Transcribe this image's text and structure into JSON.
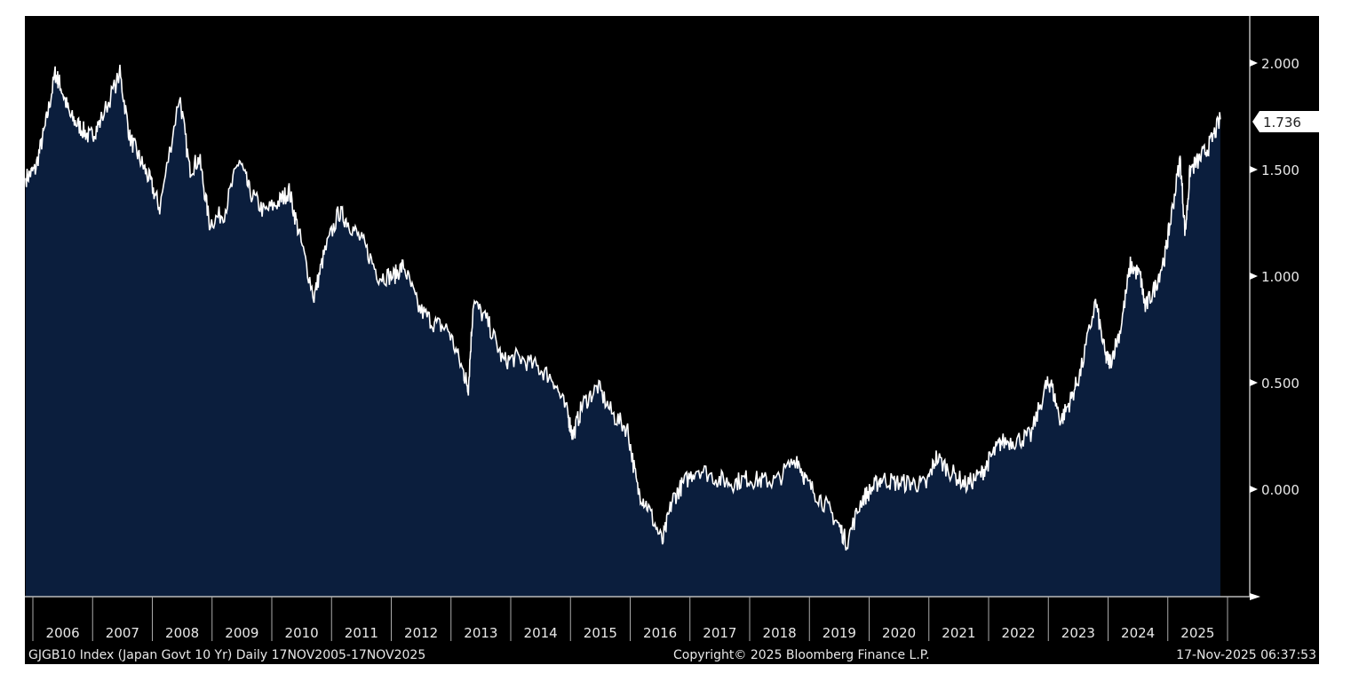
{
  "chart_data": {
    "type": "area",
    "title": "",
    "xlabel": "",
    "ylabel": "",
    "ylim": [
      -0.5,
      2.225
    ],
    "yticks": [
      "2.000",
      "1.500",
      "1.000",
      "0.500",
      "0.000"
    ],
    "ytick_values": [
      2.0,
      1.5,
      1.0,
      0.5,
      0.0
    ],
    "xticks": [
      "2006",
      "2007",
      "2008",
      "2009",
      "2010",
      "2011",
      "2012",
      "2013",
      "2014",
      "2015",
      "2016",
      "2017",
      "2018",
      "2019",
      "2020",
      "2021",
      "2022",
      "2023",
      "2024",
      "2025"
    ],
    "last_value_label": "1.736",
    "grid": false,
    "colors": {
      "background": "#000000",
      "fill": "#0b1e3d",
      "line": "#ffffff",
      "text": "#e8e8e8"
    },
    "series": [
      {
        "x": [
          "2005-11",
          "2006-01",
          "2006-03",
          "2006-05",
          "2006-06",
          "2006-08",
          "2006-10",
          "2006-12",
          "2007-02",
          "2007-06",
          "2007-08",
          "2007-10",
          "2007-12",
          "2008-02",
          "2008-06",
          "2008-08",
          "2008-10",
          "2008-12",
          "2009-03",
          "2009-06",
          "2009-08",
          "2009-11",
          "2010-02",
          "2010-04",
          "2010-06",
          "2010-09",
          "2010-11",
          "2011-02",
          "2011-04",
          "2011-07",
          "2011-10",
          "2012-01",
          "2012-03",
          "2012-06",
          "2012-09",
          "2012-12",
          "2013-03",
          "2013-04",
          "2013-05",
          "2013-08",
          "2013-11",
          "2014-02",
          "2014-06",
          "2014-09",
          "2014-12",
          "2015-01",
          "2015-03",
          "2015-06",
          "2015-09",
          "2015-12",
          "2016-02",
          "2016-04",
          "2016-07",
          "2016-09",
          "2016-11",
          "2017-02",
          "2017-06",
          "2017-09",
          "2017-12",
          "2018-03",
          "2018-06",
          "2018-10",
          "2018-12",
          "2019-03",
          "2019-06",
          "2019-08",
          "2019-11",
          "2020-01",
          "2020-03",
          "2020-06",
          "2020-09",
          "2020-12",
          "2021-02",
          "2021-05",
          "2021-08",
          "2021-11",
          "2022-01",
          "2022-03",
          "2022-06",
          "2022-09",
          "2022-12",
          "2023-01",
          "2023-03",
          "2023-05",
          "2023-07",
          "2023-10",
          "2023-12",
          "2024-01",
          "2024-03",
          "2024-05",
          "2024-07",
          "2024-08",
          "2024-10",
          "2024-12",
          "2025-01",
          "2025-03",
          "2025-04",
          "2025-05",
          "2025-07",
          "2025-09",
          "2025-11"
        ],
        "values": [
          1.46,
          1.5,
          1.7,
          1.95,
          1.9,
          1.75,
          1.7,
          1.65,
          1.72,
          1.95,
          1.65,
          1.55,
          1.45,
          1.32,
          1.85,
          1.5,
          1.55,
          1.25,
          1.3,
          1.55,
          1.4,
          1.3,
          1.35,
          1.4,
          1.2,
          0.9,
          1.1,
          1.3,
          1.25,
          1.15,
          1.0,
          1.0,
          1.05,
          0.85,
          0.78,
          0.75,
          0.55,
          0.48,
          0.88,
          0.78,
          0.6,
          0.62,
          0.57,
          0.52,
          0.35,
          0.25,
          0.4,
          0.48,
          0.35,
          0.28,
          0.0,
          -0.08,
          -0.25,
          -0.05,
          0.02,
          0.1,
          0.05,
          0.03,
          0.05,
          0.04,
          0.04,
          0.15,
          0.03,
          -0.05,
          -0.15,
          -0.25,
          -0.05,
          0.0,
          0.05,
          0.03,
          0.03,
          0.02,
          0.15,
          0.08,
          0.02,
          0.07,
          0.15,
          0.22,
          0.23,
          0.25,
          0.48,
          0.5,
          0.32,
          0.42,
          0.55,
          0.88,
          0.62,
          0.6,
          0.75,
          1.05,
          1.0,
          0.85,
          0.95,
          1.1,
          1.25,
          1.55,
          1.2,
          1.5,
          1.55,
          1.62,
          1.736
        ]
      }
    ]
  },
  "footer": {
    "left": "GJGB10 Index (Japan Govt 10 Yr) Daily 17NOV2005-17NOV2025",
    "center": "Copyright© 2025 Bloomberg Finance L.P.",
    "right": "17-Nov-2025 06:37:53"
  }
}
